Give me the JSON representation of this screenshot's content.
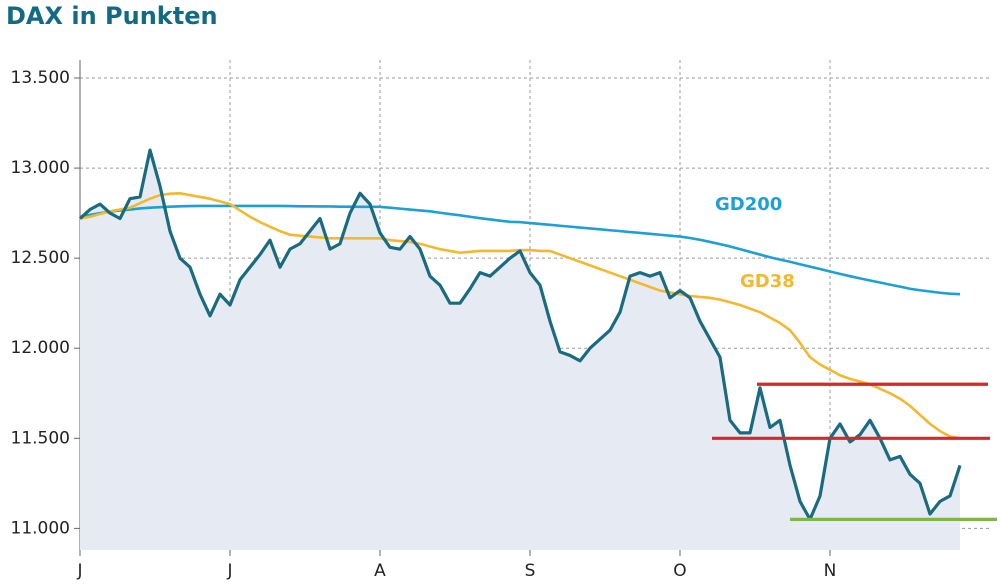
{
  "chart_data": {
    "type": "line",
    "title": "DAX in Punkten",
    "categories": [
      "J",
      null,
      null,
      null,
      null,
      null,
      null,
      null,
      null,
      null,
      null,
      null,
      null,
      null,
      null,
      "J",
      null,
      null,
      null,
      null,
      null,
      null,
      null,
      null,
      null,
      null,
      null,
      null,
      null,
      null,
      "A",
      null,
      null,
      null,
      null,
      null,
      null,
      null,
      null,
      null,
      null,
      null,
      null,
      null,
      null,
      "S",
      null,
      null,
      null,
      null,
      null,
      null,
      null,
      null,
      null,
      null,
      null,
      null,
      null,
      null,
      "O",
      null,
      null,
      null,
      null,
      null,
      null,
      null,
      null,
      null,
      null,
      null,
      null,
      null,
      null,
      "N",
      null,
      null,
      null,
      null,
      null,
      null,
      null,
      null,
      null,
      null,
      null,
      null,
      null
    ],
    "series": [
      {
        "color": "#1a6b80",
        "fill": "#e6ebf3",
        "values": [
          12720,
          12770,
          12800,
          12750,
          12720,
          12830,
          12840,
          13100,
          12900,
          12650,
          12500,
          12450,
          12300,
          12180,
          12300,
          12240,
          12380,
          12450,
          12520,
          12600,
          12450,
          12550,
          12580,
          12650,
          12720,
          12550,
          12580,
          12750,
          12860,
          12800,
          12640,
          12560,
          12550,
          12620,
          12550,
          12400,
          12350,
          12250,
          12250,
          12330,
          12420,
          12400,
          12450,
          12500,
          12540,
          12420,
          12350,
          12150,
          11980,
          11960,
          11930,
          12000,
          12050,
          12100,
          12200,
          12400,
          12420,
          12400,
          12420,
          12280,
          12320,
          12280,
          12150,
          12050,
          11950,
          11600,
          11530,
          11530,
          11780,
          11560,
          11600,
          11350,
          11150,
          11050,
          11180,
          11500,
          11580,
          11480,
          11520,
          11600,
          11500,
          11380,
          11400,
          11300,
          11250,
          11080,
          11150,
          11180,
          11350
        ]
      },
      {
        "name": "GD200",
        "color": "#1e9fd6",
        "values": [
          12730,
          12740,
          12750,
          12758,
          12765,
          12770,
          12776,
          12780,
          12783,
          12786,
          12788,
          12789,
          12790,
          12790,
          12790,
          12790,
          12790,
          12790,
          12790,
          12790,
          12790,
          12789,
          12788,
          12788,
          12787,
          12787,
          12786,
          12786,
          12785,
          12785,
          12785,
          12780,
          12775,
          12770,
          12765,
          12760,
          12752,
          12745,
          12738,
          12730,
          12722,
          12715,
          12708,
          12702,
          12700,
          12695,
          12690,
          12685,
          12680,
          12675,
          12670,
          12665,
          12660,
          12655,
          12650,
          12645,
          12640,
          12635,
          12630,
          12625,
          12620,
          12612,
          12602,
          12590,
          12578,
          12565,
          12550,
          12535,
          12520,
          12505,
          12492,
          12480,
          12466,
          12453,
          12440,
          12426,
          12413,
          12400,
          12388,
          12376,
          12365,
          12353,
          12342,
          12330,
          12322,
          12315,
          12308,
          12303,
          12300
        ]
      },
      {
        "name": "GD38",
        "color": "#f2b830",
        "values": [
          12720,
          12730,
          12745,
          12760,
          12770,
          12780,
          12805,
          12830,
          12850,
          12858,
          12860,
          12850,
          12840,
          12830,
          12815,
          12800,
          12765,
          12730,
          12700,
          12675,
          12650,
          12630,
          12625,
          12620,
          12615,
          12610,
          12610,
          12610,
          12610,
          12610,
          12610,
          12600,
          12595,
          12590,
          12580,
          12565,
          12550,
          12540,
          12530,
          12535,
          12540,
          12540,
          12540,
          12540,
          12545,
          12545,
          12540,
          12540,
          12520,
          12500,
          12480,
          12460,
          12440,
          12420,
          12400,
          12380,
          12360,
          12340,
          12320,
          12310,
          12300,
          12290,
          12285,
          12280,
          12270,
          12255,
          12240,
          12220,
          12200,
          12170,
          12140,
          12100,
          12030,
          11950,
          11910,
          11880,
          11850,
          11830,
          11815,
          11800,
          11775,
          11750,
          11720,
          11680,
          11630,
          11580,
          11540,
          11510,
          11500
        ]
      }
    ],
    "levels": [
      {
        "value": 11800,
        "color": "#d9262e"
      },
      {
        "value": 11500,
        "color": "#d9262e"
      },
      {
        "value": 11050,
        "color": "#7ab648"
      }
    ],
    "ylim": [
      10880,
      13600
    ],
    "yticks": [
      {
        "value": 11000,
        "label": "11.000"
      },
      {
        "value": 11500,
        "label": "11.500"
      },
      {
        "value": 12000,
        "label": "12.000"
      },
      {
        "value": 12500,
        "label": "12.500"
      },
      {
        "value": 13000,
        "label": "13.000"
      },
      {
        "value": 13500,
        "label": "13.500"
      }
    ],
    "grid": true
  }
}
